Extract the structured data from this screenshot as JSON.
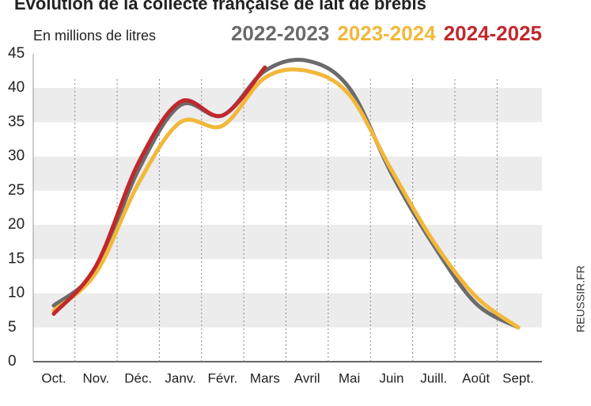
{
  "chart_data": {
    "type": "line",
    "title": "Évolution de la collecte française de lait de brebis",
    "subtitle": "En millions de litres",
    "source": "REUSSIR.FR",
    "categories": [
      "Oct.",
      "Nov.",
      "Déc.",
      "Janv.",
      "Févr.",
      "Mars",
      "Avril",
      "Mai",
      "Juin",
      "Juill.",
      "Août",
      "Sept."
    ],
    "series": [
      {
        "name": "2022-2023",
        "color": "#6b6b6b",
        "values": [
          8.2,
          13.5,
          28,
          37.5,
          36,
          42.5,
          44,
          40,
          27.5,
          17,
          8.5,
          5
        ]
      },
      {
        "name": "2023-2024",
        "color": "#f2b83a",
        "values": [
          7.5,
          13,
          26,
          35,
          34.5,
          41.5,
          42.5,
          39,
          28,
          17.5,
          9.5,
          5
        ]
      },
      {
        "name": "2024-2025",
        "color": "#c0282d",
        "values": [
          7,
          14,
          29,
          38,
          36,
          43,
          null,
          null,
          null,
          null,
          null,
          null
        ]
      }
    ],
    "ylim": [
      0,
      45
    ],
    "yticks": [
      0,
      5,
      10,
      15,
      20,
      25,
      30,
      35,
      40,
      45
    ],
    "grid": true,
    "legend": "top-right"
  }
}
